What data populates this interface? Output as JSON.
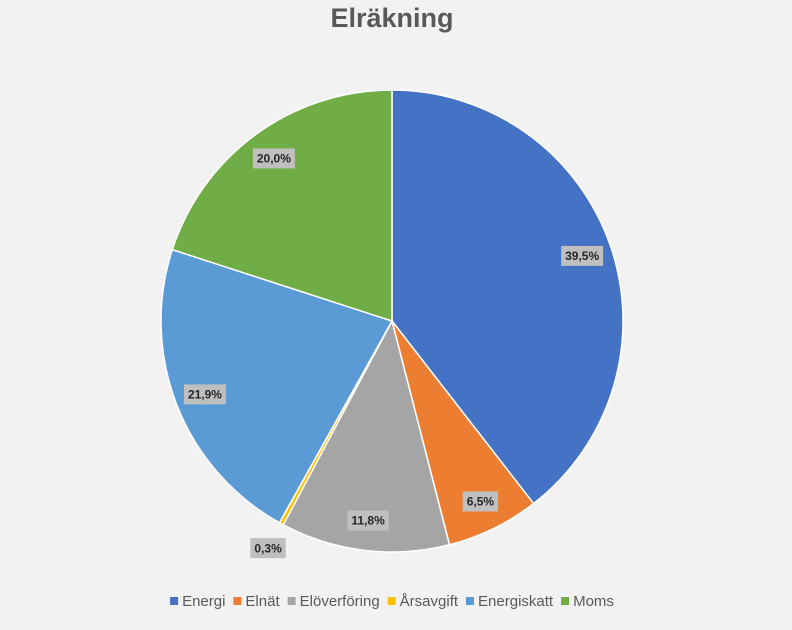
{
  "chart_data": {
    "type": "pie",
    "title": "Elräkning",
    "categories": [
      "Energi",
      "Elnät",
      "Elöverföring",
      "Årsavgift",
      "Energiskatt",
      "Moms"
    ],
    "values": [
      39.5,
      6.5,
      11.8,
      0.3,
      21.9,
      20.0
    ],
    "value_labels": [
      "39,5%",
      "6,5%",
      "11,8%",
      "0,3%",
      "21,9%",
      "20,0%"
    ],
    "colors": [
      "#4472c4",
      "#ed7d31",
      "#a5a5a5",
      "#ffc000",
      "#5b9bd5",
      "#70ad47"
    ],
    "legend": "bottom"
  }
}
